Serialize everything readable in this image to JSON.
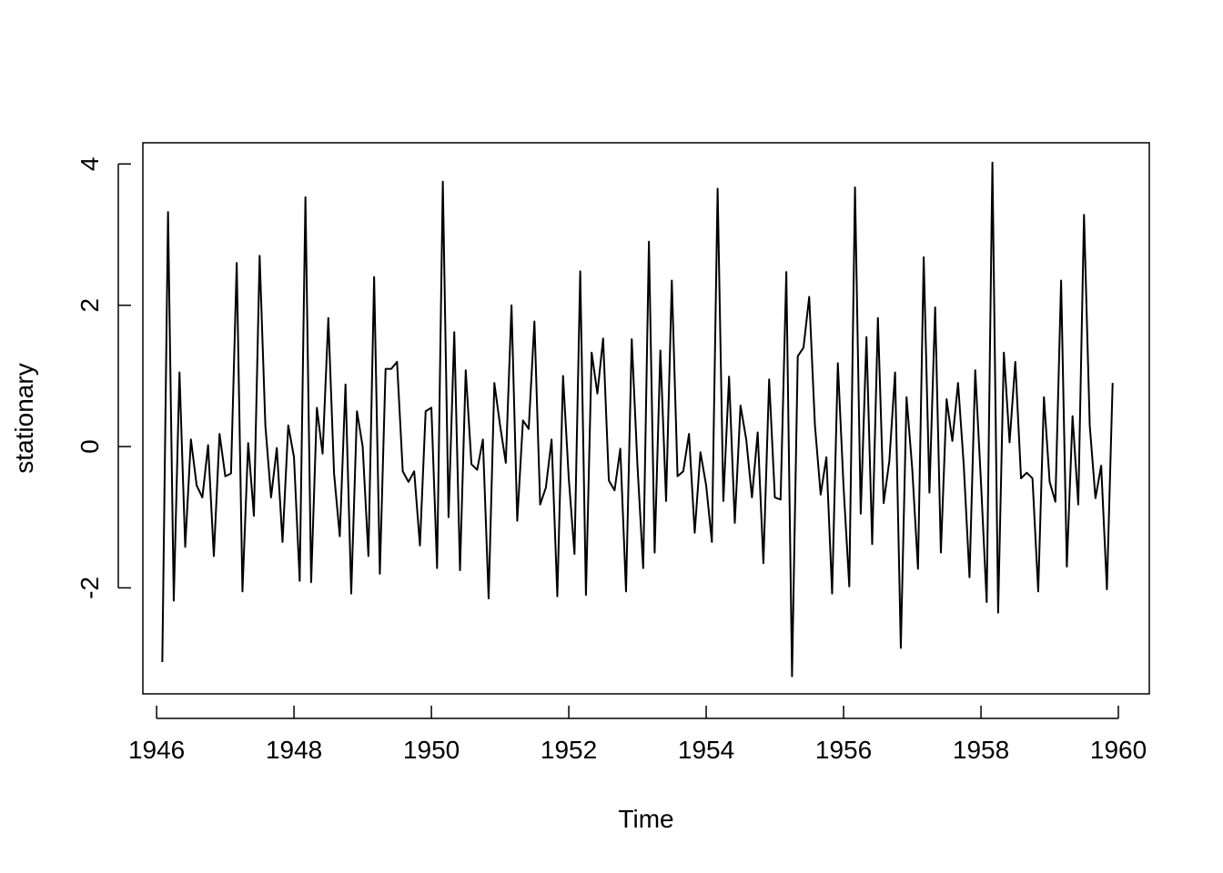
{
  "chart_data": {
    "type": "line",
    "xlabel": "Time",
    "ylabel": "stationary",
    "xlim": [
      1945.8,
      1960.45
    ],
    "ylim": [
      -3.5,
      4.3
    ],
    "x_ticks": [
      1946,
      1948,
      1950,
      1952,
      1954,
      1956,
      1958,
      1960
    ],
    "x_tick_labels": [
      "1946",
      "1948",
      "1950",
      "1952",
      "1954",
      "1956",
      "1958",
      "1960"
    ],
    "y_ticks": [
      -2,
      0,
      2,
      4
    ],
    "y_tick_labels": [
      "-2",
      "0",
      "2",
      "4"
    ],
    "grid": false,
    "legend": "none",
    "x_start": 1946.083,
    "x_step": 0.0833333,
    "values": [
      -3.05,
      3.32,
      -2.18,
      1.05,
      -1.42,
      0.1,
      -0.55,
      -0.72,
      0.02,
      -1.55,
      0.18,
      -0.42,
      -0.38,
      2.6,
      -2.05,
      0.05,
      -0.98,
      2.7,
      0.3,
      -0.72,
      -0.02,
      -1.35,
      0.3,
      -0.15,
      -1.9,
      3.53,
      -1.92,
      0.55,
      -0.1,
      1.82,
      -0.38,
      -1.27,
      0.88,
      -2.08,
      0.5,
      0.0,
      -1.55,
      2.4,
      -1.8,
      1.1,
      1.1,
      1.2,
      -0.35,
      -0.5,
      -0.35,
      -1.4,
      0.5,
      0.55,
      -1.72,
      3.75,
      -1.0,
      1.62,
      -1.75,
      1.08,
      -0.25,
      -0.33,
      0.1,
      -2.15,
      0.9,
      0.3,
      -0.23,
      2.0,
      -1.05,
      0.37,
      0.25,
      1.77,
      -0.82,
      -0.58,
      0.1,
      -2.12,
      1.0,
      -0.45,
      -1.52,
      2.48,
      -2.1,
      1.33,
      0.75,
      1.53,
      -0.48,
      -0.62,
      -0.03,
      -2.05,
      1.52,
      -0.27,
      -1.72,
      2.9,
      -1.5,
      1.36,
      -0.77,
      2.35,
      -0.42,
      -0.35,
      0.18,
      -1.22,
      -0.08,
      -0.55,
      -1.35,
      3.65,
      -0.77,
      0.99,
      -1.08,
      0.58,
      0.1,
      -0.72,
      0.2,
      -1.65,
      0.95,
      -0.72,
      -0.75,
      2.47,
      -3.25,
      1.28,
      1.4,
      2.12,
      0.3,
      -0.68,
      -0.15,
      -2.08,
      1.18,
      -0.57,
      -1.98,
      3.67,
      -0.95,
      1.55,
      -1.38,
      1.82,
      -0.8,
      -0.2,
      1.05,
      -2.85,
      0.7,
      -0.32,
      -1.73,
      2.68,
      -0.65,
      1.97,
      -1.5,
      0.67,
      0.08,
      0.9,
      -0.27,
      -1.85,
      1.08,
      -0.5,
      -2.2,
      4.02,
      -2.35,
      1.33,
      0.06,
      1.2,
      -0.45,
      -0.37,
      -0.45,
      -2.05,
      0.7,
      -0.5,
      -0.78,
      2.35,
      -1.7,
      0.43,
      -0.82,
      3.28,
      0.3,
      -0.73,
      -0.27,
      -2.02,
      0.9
    ]
  }
}
